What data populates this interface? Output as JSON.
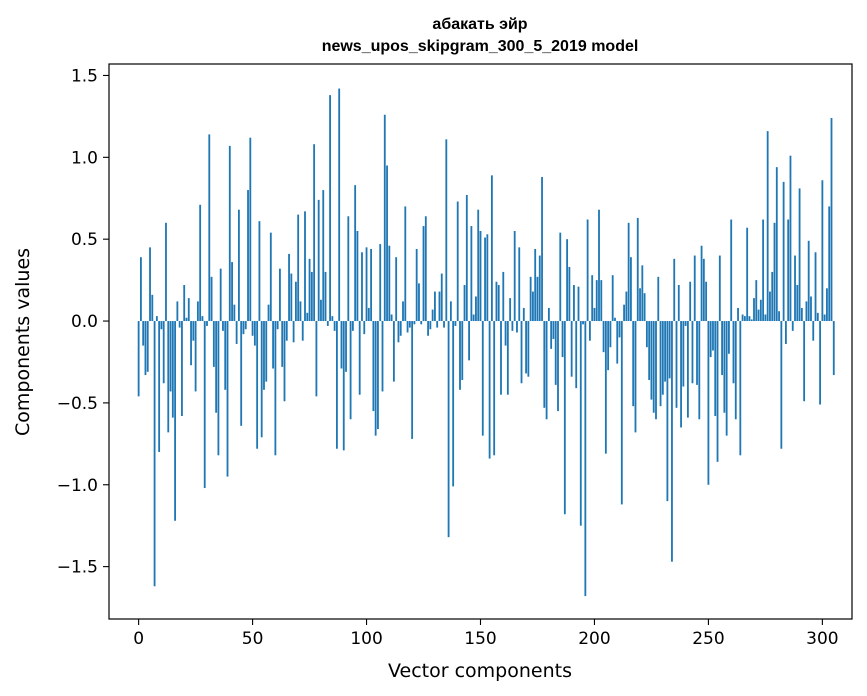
{
  "chart_data": {
    "type": "bar",
    "title": "абакать эйр",
    "subtitle": "news_upos_skipgram_300_5_2019 model",
    "xlabel": "Vector components",
    "ylabel": "Components values",
    "xlim": [
      -13,
      313
    ],
    "ylim": [
      -1.82,
      1.57
    ],
    "x_ticks": [
      0,
      50,
      100,
      150,
      200,
      250,
      300
    ],
    "y_ticks": [
      1.5,
      1.0,
      0.5,
      0.0,
      -0.5,
      -1.0,
      -1.5
    ],
    "y_tick_labels": [
      "1.5",
      "1.0",
      "0.5",
      "0.0",
      "−0.5",
      "−1.0",
      "−1.5"
    ],
    "grid": false,
    "bar_color": "#1f77b4",
    "x_start": 0,
    "values": [
      -0.46,
      0.39,
      -0.15,
      -0.33,
      -0.31,
      0.45,
      0.16,
      -1.62,
      0.03,
      -0.8,
      -0.05,
      -0.38,
      0.6,
      -0.68,
      -0.43,
      -0.59,
      -1.22,
      0.12,
      -0.04,
      -0.58,
      0.22,
      0.02,
      0.14,
      -0.27,
      -0.12,
      -0.43,
      0.12,
      0.71,
      0.03,
      -1.02,
      -0.03,
      1.14,
      0.27,
      -0.28,
      -0.56,
      -0.82,
      0.32,
      -0.06,
      -0.42,
      -0.95,
      1.07,
      0.36,
      0.1,
      -0.14,
      0.68,
      -0.64,
      -0.08,
      -0.05,
      0.8,
      1.12,
      -0.09,
      -0.15,
      -0.78,
      0.61,
      -0.71,
      -0.42,
      -0.37,
      0.1,
      0.54,
      -0.29,
      -0.82,
      -0.05,
      0.32,
      -0.28,
      -0.49,
      -0.12,
      0.41,
      0.29,
      -0.13,
      0.24,
      0.65,
      0.12,
      -0.12,
      0.67,
      0.05,
      0.38,
      0.3,
      1.08,
      -0.46,
      0.74,
      0.13,
      0.8,
      0.3,
      -0.03,
      1.38,
      0.03,
      -0.06,
      -0.78,
      1.42,
      -0.29,
      -0.79,
      -0.31,
      0.64,
      -0.6,
      -0.06,
      0.83,
      0.55,
      -0.45,
      0.42,
      -0.08,
      0.45,
      0.08,
      0.44,
      -0.55,
      -0.7,
      -0.66,
      0.47,
      -0.43,
      1.26,
      0.95,
      0.46,
      0.04,
      -0.37,
      0.39,
      -0.13,
      -0.09,
      0.12,
      0.7,
      -0.07,
      -0.04,
      -0.72,
      -0.02,
      0.44,
      0.23,
      -0.02,
      0.58,
      0.64,
      -0.09,
      -0.05,
      0.07,
      0.18,
      -0.04,
      0.18,
      0.29,
      -0.04,
      1.11,
      -1.32,
      0.12,
      -1.01,
      -0.03,
      0.73,
      -0.42,
      -0.36,
      0.22,
      0.77,
      -0.24,
      0.58,
      0.04,
      0.15,
      0.68,
      0.55,
      -0.7,
      0.51,
      0.53,
      -0.84,
      0.89,
      -0.82,
      0.24,
      0.22,
      -0.45,
      0.3,
      -0.15,
      -0.45,
      0.14,
      -0.06,
      0.55,
      -0.07,
      0.45,
      -0.38,
      0.08,
      -0.32,
      -0.34,
      0.27,
      0.18,
      0.44,
      0.27,
      0.4,
      0.88,
      -0.53,
      -0.6,
      0.08,
      -0.17,
      -0.11,
      -0.39,
      -0.55,
      0.54,
      -0.22,
      -1.18,
      0.5,
      0.33,
      -0.34,
      0.22,
      -0.41,
      0.21,
      -1.25,
      -0.02,
      -1.68,
      0.62,
      -0.12,
      0.28,
      0.08,
      0.25,
      0.68,
      0.25,
      -0.19,
      -0.81,
      -0.3,
      -0.16,
      0.28,
      0.02,
      -0.26,
      -0.1,
      -1.12,
      0.1,
      0.18,
      0.6,
      0.39,
      -0.52,
      -0.68,
      0.63,
      0.2,
      0.34,
      0.17,
      -0.16,
      -0.36,
      -0.48,
      -0.56,
      -0.6,
      0.27,
      -0.52,
      -0.45,
      -0.37,
      -1.1,
      -0.35,
      -1.47,
      0.38,
      -0.53,
      0.22,
      -0.65,
      -0.4,
      -0.03,
      -0.59,
      0.24,
      -0.38,
      0.4,
      -0.39,
      -0.6,
      0.46,
      0.38,
      0.24,
      -1.0,
      -0.22,
      -0.18,
      -0.58,
      -0.86,
      0.4,
      -0.33,
      -0.56,
      -0.7,
      -0.2,
      0.62,
      -0.38,
      -0.6,
      0.08,
      -0.82,
      0.04,
      0.03,
      0.57,
      0.03,
      0.01,
      0.14,
      0.25,
      0.07,
      0.13,
      0.62,
      0.04,
      1.16,
      0.18,
      0.3,
      0.6,
      0.94,
      0.06,
      -0.78,
      0.85,
      -0.14,
      0.62,
      1.01,
      -0.06,
      0.4,
      0.22,
      0.81,
      0.08,
      -0.49,
      0.12,
      0.49,
      0.15,
      -0.12,
      0.42,
      0.05,
      -0.51,
      0.86,
      0.04,
      0.2,
      0.7,
      1.24,
      -0.33
    ]
  }
}
